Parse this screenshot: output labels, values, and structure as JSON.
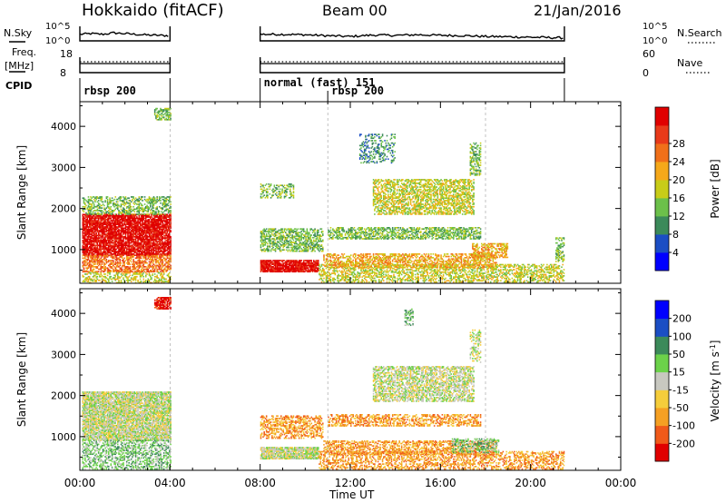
{
  "header": {
    "station": "Hokkaido (fitACF)",
    "beam": "Beam 00",
    "date": "21/Jan/2016"
  },
  "chart_data": [
    {
      "type": "line",
      "panel": "noise-sky-search",
      "ylabel_left": "N.Sky",
      "ylabel_right": "N.Search",
      "left_ticks": [
        "10^5",
        "10^0"
      ],
      "right_ticks": [
        "10^5",
        "10^0"
      ],
      "style_right": "dotted",
      "segments_hours": [
        [
          0,
          4
        ],
        [
          8,
          21.5
        ]
      ],
      "series": [
        {
          "name": "N.Sky",
          "x": [
            0,
            0.5,
            1,
            1.5,
            2,
            2.5,
            3,
            3.5,
            4,
            8,
            9,
            10,
            11,
            12,
            13,
            14,
            15,
            16,
            17,
            18,
            19,
            20,
            21,
            21.5
          ],
          "values": [
            0.45,
            0.5,
            0.45,
            0.55,
            0.5,
            0.45,
            0.4,
            0.38,
            0.35,
            0.45,
            0.45,
            0.42,
            0.35,
            0.3,
            0.4,
            0.38,
            0.42,
            0.38,
            0.36,
            0.3,
            0.28,
            0.25,
            0.22,
            0.2
          ]
        }
      ]
    },
    {
      "type": "line",
      "panel": "frequency-nave",
      "ylabel_left": "Freq.\n[MHz]",
      "ylabel_right": "Nave",
      "left_ticks": [
        "18",
        "8"
      ],
      "right_ticks": [
        "60",
        "0"
      ],
      "style_right": "dotted",
      "segments_hours": [
        [
          0,
          4
        ],
        [
          8,
          21.5
        ]
      ]
    },
    {
      "type": "table",
      "panel": "cpid",
      "label": "CPID",
      "programs": [
        {
          "start_hour": 0,
          "label": "rbsp 200"
        },
        {
          "start_hour": 8,
          "label": "normal (fast) 151"
        },
        {
          "start_hour": 11,
          "label": "rbsp 200"
        }
      ]
    },
    {
      "type": "heatmap",
      "panel": "power",
      "ylabel": "Slant Range [km]",
      "y_ticks": [
        1000,
        2000,
        3000,
        4000
      ],
      "ylim": [
        180,
        4600
      ],
      "xlim_hours": [
        0,
        24
      ],
      "colorbar": {
        "label": "Power [dB]",
        "ticks": [
          "4",
          "8",
          "12",
          "16",
          "20",
          "24",
          "28"
        ],
        "colors": [
          "#0000ff",
          "#1b4ec4",
          "#3c8a5a",
          "#6cc04a",
          "#c8cc18",
          "#f5a81a",
          "#f0701a",
          "#e83a1a",
          "#e00000"
        ]
      },
      "regions": [
        {
          "t0": 0.1,
          "t1": 4.0,
          "r0": 850,
          "r1": 1850,
          "level": 8,
          "density": 0.85
        },
        {
          "t0": 0.1,
          "t1": 4.0,
          "r0": 1850,
          "r1": 2300,
          "level": 3,
          "density": 0.45
        },
        {
          "t0": 0.1,
          "t1": 4.0,
          "r0": 450,
          "r1": 850,
          "level": 6,
          "density": 0.6
        },
        {
          "t0": 0.1,
          "t1": 4.0,
          "r0": 180,
          "r1": 450,
          "level": 4,
          "density": 0.45
        },
        {
          "t0": 3.3,
          "t1": 4.0,
          "r0": 4150,
          "r1": 4450,
          "level": 3,
          "density": 0.6
        },
        {
          "t0": 8.0,
          "t1": 10.6,
          "r0": 450,
          "r1": 750,
          "level": 8,
          "density": 0.9
        },
        {
          "t0": 8.0,
          "t1": 10.8,
          "r0": 950,
          "r1": 1500,
          "level": 3,
          "density": 0.55
        },
        {
          "t0": 8.0,
          "t1": 9.5,
          "r0": 2250,
          "r1": 2600,
          "level": 3,
          "density": 0.4
        },
        {
          "t0": 10.6,
          "t1": 21.5,
          "r0": 200,
          "r1": 650,
          "level": 4,
          "density": 0.45
        },
        {
          "t0": 10.8,
          "t1": 18.5,
          "r0": 550,
          "r1": 900,
          "level": 5,
          "density": 0.55
        },
        {
          "t0": 11.0,
          "t1": 17.8,
          "r0": 1250,
          "r1": 1550,
          "level": 3,
          "density": 0.55
        },
        {
          "t0": 13.0,
          "t1": 17.5,
          "r0": 1850,
          "r1": 2700,
          "level": 4,
          "density": 0.55
        },
        {
          "t0": 17.4,
          "t1": 19.0,
          "r0": 800,
          "r1": 1150,
          "level": 5,
          "density": 0.55
        },
        {
          "t0": 12.4,
          "t1": 14.0,
          "r0": 3100,
          "r1": 3800,
          "level": 2,
          "density": 0.3
        },
        {
          "t0": 17.3,
          "t1": 17.8,
          "r0": 2800,
          "r1": 3600,
          "level": 3,
          "density": 0.5
        },
        {
          "t0": 21.1,
          "t1": 21.5,
          "r0": 700,
          "r1": 1300,
          "level": 3,
          "density": 0.5
        }
      ]
    },
    {
      "type": "heatmap",
      "panel": "velocity",
      "ylabel": "Slant Range [km]",
      "xlabel": "Time UT",
      "x_tick_labels": [
        "00:00",
        "04:00",
        "08:00",
        "12:00",
        "16:00",
        "20:00",
        "00:00"
      ],
      "y_ticks": [
        1000,
        2000,
        3000,
        4000
      ],
      "ylim": [
        180,
        4600
      ],
      "xlim_hours": [
        0,
        24
      ],
      "colorbar": {
        "label": "Velocity [m s",
        "label_superscript": "-1",
        "label_close": "]",
        "ticks": [
          "-200",
          "-100",
          "-50",
          "-15",
          "15",
          "50",
          "100",
          "200"
        ],
        "colors": [
          "#e00000",
          "#f05a1a",
          "#f5a023",
          "#f5cd3b",
          "#c8c8c0",
          "#6cd24a",
          "#3c8a5a",
          "#1b4ec4",
          "#0000ff"
        ]
      },
      "regions": [
        {
          "t0": 0.1,
          "t1": 4.0,
          "r0": 900,
          "r1": 2100,
          "level": 4,
          "density": 0.85
        },
        {
          "t0": 0.1,
          "t1": 4.0,
          "r0": 200,
          "r1": 900,
          "level": 5,
          "density": 0.45
        },
        {
          "t0": 3.3,
          "t1": 4.0,
          "r0": 4100,
          "r1": 4400,
          "level": 0,
          "density": 0.7
        },
        {
          "t0": 8.0,
          "t1": 10.6,
          "r0": 450,
          "r1": 750,
          "level": 4,
          "density": 0.9
        },
        {
          "t0": 8.0,
          "t1": 10.8,
          "r0": 950,
          "r1": 1500,
          "level": 2,
          "density": 0.5
        },
        {
          "t0": 10.6,
          "t1": 21.5,
          "r0": 200,
          "r1": 650,
          "level": 2,
          "density": 0.45
        },
        {
          "t0": 10.8,
          "t1": 18.5,
          "r0": 550,
          "r1": 900,
          "level": 2,
          "density": 0.5
        },
        {
          "t0": 11.0,
          "t1": 17.8,
          "r0": 1250,
          "r1": 1550,
          "level": 2,
          "density": 0.5
        },
        {
          "t0": 13.0,
          "t1": 17.5,
          "r0": 1850,
          "r1": 2700,
          "level": 4,
          "density": 0.6
        },
        {
          "t0": 14.4,
          "t1": 14.8,
          "r0": 3700,
          "r1": 4100,
          "level": 5,
          "density": 0.5
        },
        {
          "t0": 17.3,
          "t1": 17.8,
          "r0": 2800,
          "r1": 3600,
          "level": 4,
          "density": 0.4
        },
        {
          "t0": 16.5,
          "t1": 18.6,
          "r0": 600,
          "r1": 950,
          "level": 5,
          "density": 0.45
        }
      ]
    }
  ]
}
